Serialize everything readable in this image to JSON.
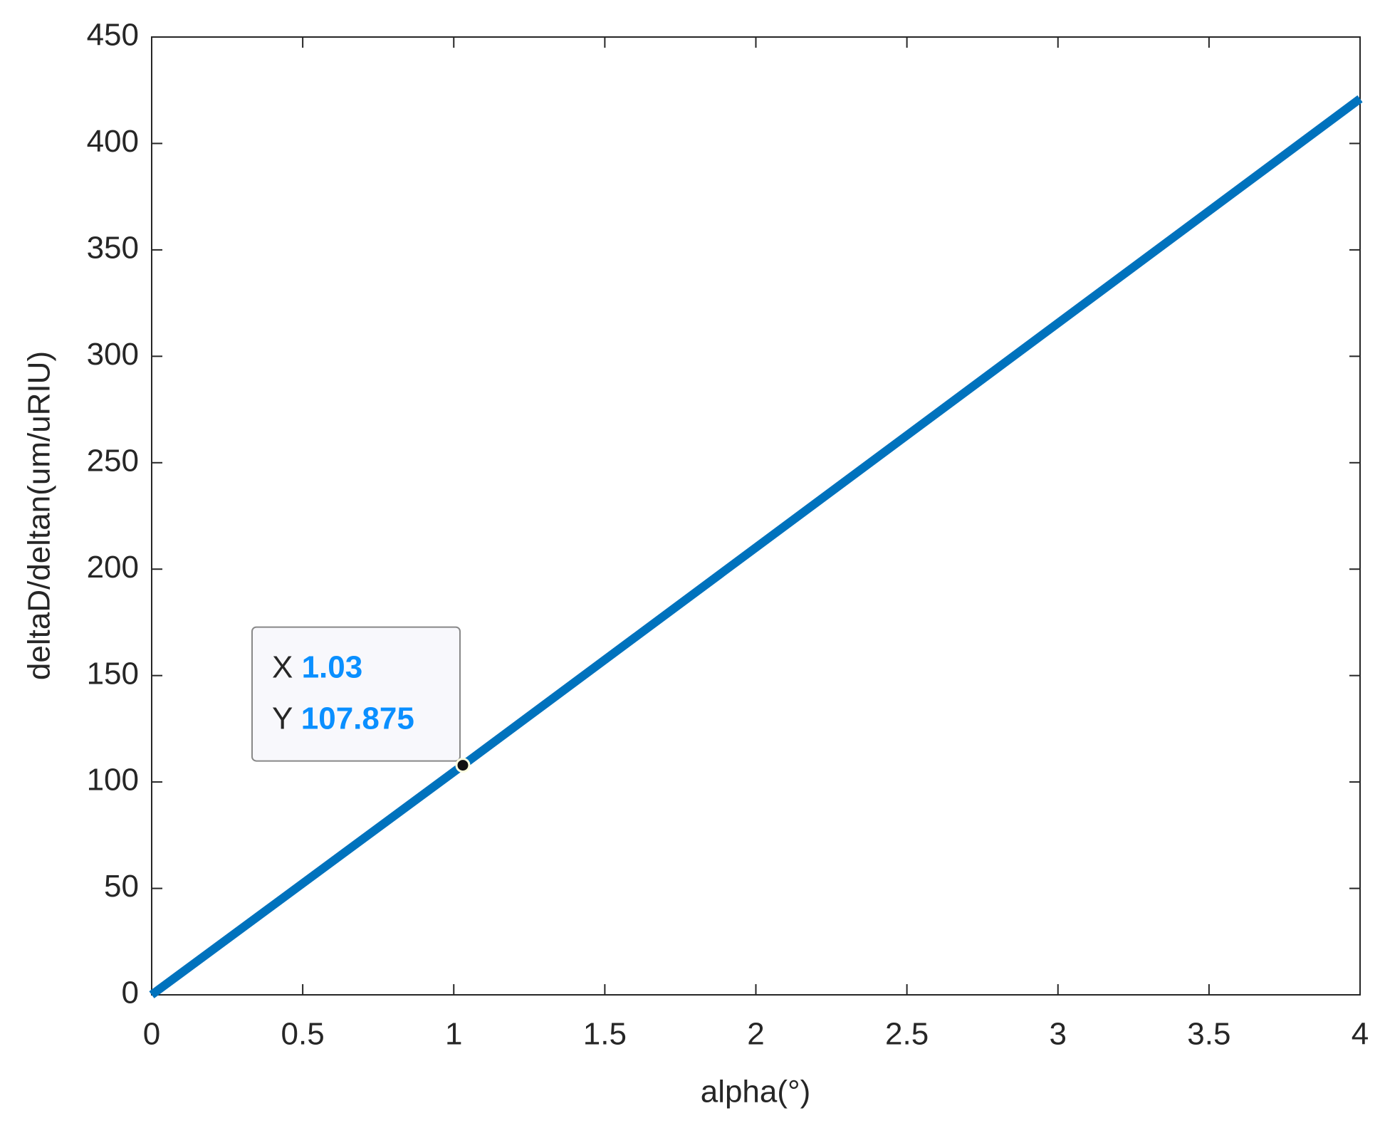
{
  "chart_data": {
    "type": "line",
    "x": [
      0,
      1.03,
      4
    ],
    "series": [
      {
        "color": "#0072bd",
        "values": [
          0,
          107.875,
          421
        ]
      }
    ],
    "xlabel": "alpha(°)",
    "ylabel": "deltaD/deltan(um/uRIU)",
    "xlim": [
      0,
      4
    ],
    "xticks": [
      0,
      0.5,
      1,
      1.5,
      2,
      2.5,
      3,
      3.5,
      4
    ],
    "ylim": [
      0,
      450
    ],
    "yticks": [
      0,
      50,
      100,
      150,
      200,
      250,
      300,
      350,
      400,
      450
    ],
    "datatip": {
      "x_label": "X",
      "x": 1.03,
      "y_label": "Y",
      "y": 107.875,
      "color": "#0a8fff"
    }
  }
}
